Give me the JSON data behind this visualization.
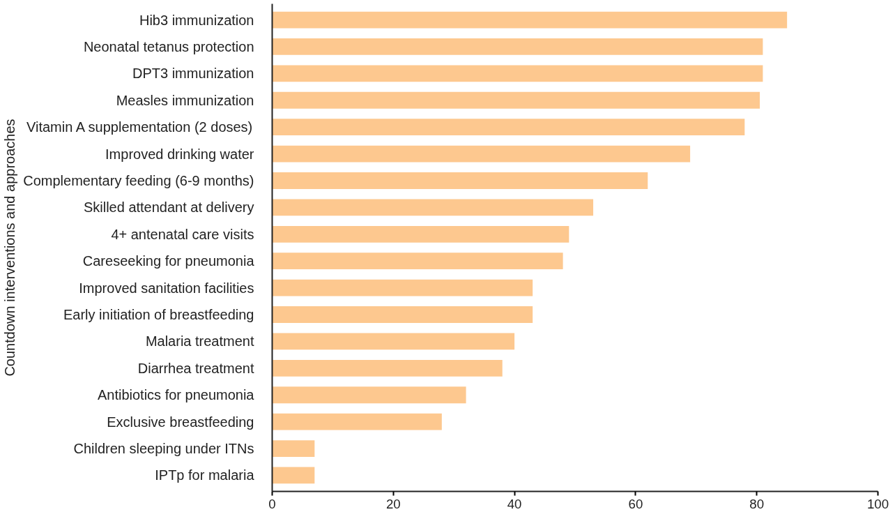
{
  "chart_data": {
    "type": "bar",
    "orientation": "horizontal",
    "ylabel": "Countdown interventions and approaches",
    "categories": [
      "Hib3 immunization",
      "Neonatal tetanus protection",
      "DPT3 immunization",
      "Measles immunization",
      "Vitamin A supplementation (2 doses)",
      "Improved drinking water",
      "Complementary feeding (6-9 months)",
      "Skilled attendant at delivery",
      "4+ antenatal care visits",
      "Careseeking for pneumonia",
      "Improved sanitation facilities",
      "Early initiation of breastfeeding",
      "Malaria treatment",
      "Diarrhea treatment",
      "Antibiotics for pneumonia",
      "Exclusive breastfeeding",
      "Children sleeping under ITNs",
      "IPTp for malaria"
    ],
    "values": [
      85,
      81,
      81,
      80.5,
      78,
      69,
      62,
      53,
      49,
      48,
      43,
      43,
      40,
      38,
      32,
      28,
      7,
      7
    ],
    "color": "#fdc88f",
    "xlim": [
      0,
      100
    ],
    "xticks": [
      0,
      20,
      40,
      60,
      80,
      100
    ],
    "grid": false
  }
}
